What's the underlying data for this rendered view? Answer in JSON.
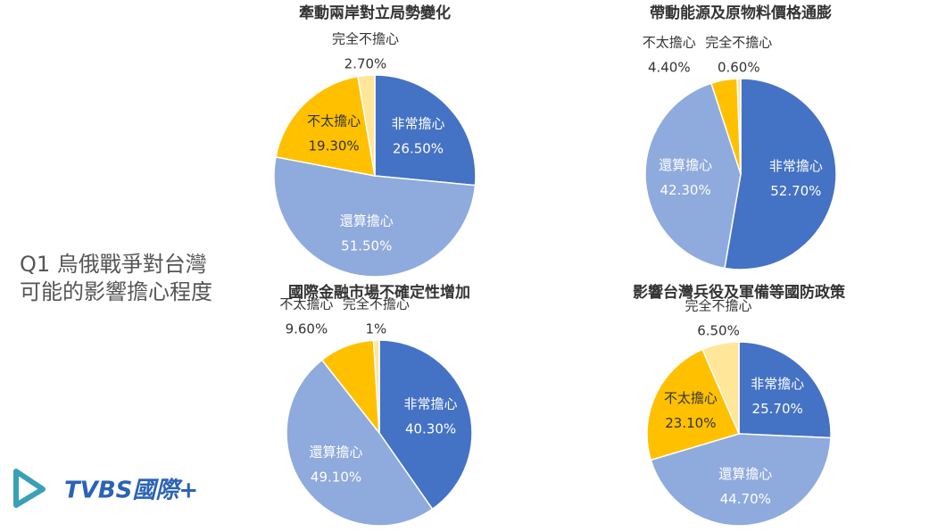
{
  "side_title": [
    "Q1 烏俄戰爭對台灣",
    "可能的影響擔心程度"
  ],
  "logo": "TVBS國際+",
  "chart_data": [
    {
      "type": "pie",
      "title": "牽動兩岸對立局勢變化",
      "categories": [
        "非常擔心",
        "還算擔心",
        "不太擔心",
        "完全不擔心"
      ],
      "values": [
        26.5,
        51.5,
        19.3,
        2.7
      ],
      "value_labels": [
        "26.50%",
        "51.50%",
        "19.30%",
        "2.70%"
      ],
      "colors": [
        "#4472c4",
        "#8faadc",
        "#ffc000",
        "#ffe699"
      ]
    },
    {
      "type": "pie",
      "title": "帶動能源及原物料價格通膨",
      "categories": [
        "非常擔心",
        "還算擔心",
        "不太擔心",
        "完全不擔心"
      ],
      "values": [
        52.7,
        42.3,
        4.4,
        0.6
      ],
      "value_labels": [
        "52.70%",
        "42.30%",
        "4.40%",
        "0.60%"
      ],
      "colors": [
        "#4472c4",
        "#8faadc",
        "#ffc000",
        "#ffe699"
      ]
    },
    {
      "type": "pie",
      "title": "國際金融市場不確定性增加",
      "categories": [
        "非常擔心",
        "還算擔心",
        "不太擔心",
        "完全不擔心"
      ],
      "values": [
        40.3,
        49.1,
        9.6,
        1
      ],
      "value_labels": [
        "40.30%",
        "49.10%",
        "9.60%",
        "1%"
      ],
      "colors": [
        "#4472c4",
        "#8faadc",
        "#ffc000",
        "#ffe699"
      ]
    },
    {
      "type": "pie",
      "title": "影響台灣兵役及軍備等國防政策",
      "categories": [
        "非常擔心",
        "還算擔心",
        "不太擔心",
        "完全不擔心"
      ],
      "values": [
        25.7,
        44.7,
        23.1,
        6.5
      ],
      "value_labels": [
        "25.70%",
        "44.70%",
        "23.10%",
        "6.50%"
      ],
      "colors": [
        "#4472c4",
        "#8faadc",
        "#ffc000",
        "#ffe699"
      ]
    }
  ]
}
